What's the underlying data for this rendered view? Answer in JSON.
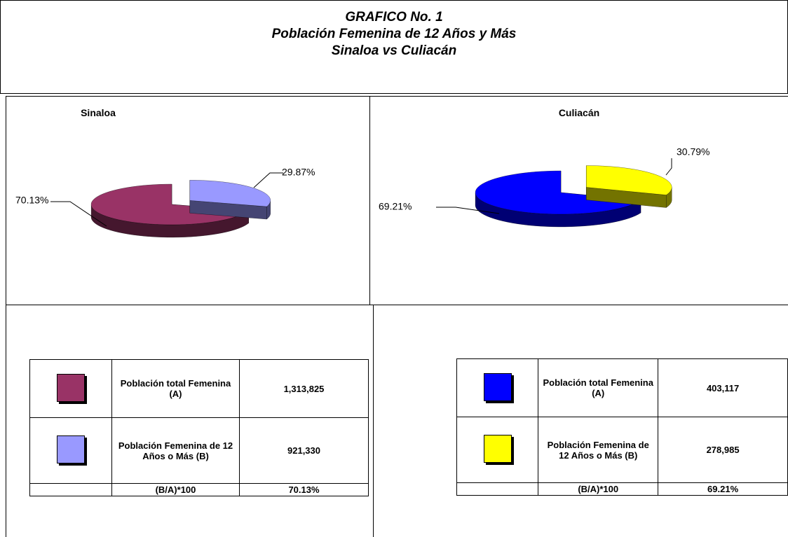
{
  "header": {
    "title_lines": [
      "GRAFICO No. 1",
      "Población Femenina de 12 Años y Más",
      "Sinaloa vs Culiacán"
    ]
  },
  "chart_data": [
    {
      "type": "pie",
      "title": "Sinaloa",
      "values": [
        70.13,
        29.87
      ],
      "value_labels": [
        "70.13%",
        "29.87%"
      ],
      "colors": [
        "#993366",
        "#9999ff"
      ]
    },
    {
      "type": "pie",
      "title": "Culiacán",
      "values": [
        69.21,
        30.79
      ],
      "value_labels": [
        "69.21%",
        "30.79%"
      ],
      "colors": [
        "#0000ff",
        "#ffff00"
      ]
    }
  ],
  "tables": [
    {
      "rows": [
        [
          "Población total Femenina  (A)",
          "1,313,825"
        ],
        [
          "Población Femenina de 12 Años o Más (B)",
          "921,330"
        ],
        [
          "(B/A)*100",
          "70.13%"
        ]
      ]
    },
    {
      "rows": [
        [
          "Población total Femenina  (A)",
          "403,117"
        ],
        [
          "Población Femenina de 12 Años o Más (B)",
          "278,985"
        ],
        [
          "(B/A)*100",
          "69.21%"
        ]
      ]
    }
  ]
}
